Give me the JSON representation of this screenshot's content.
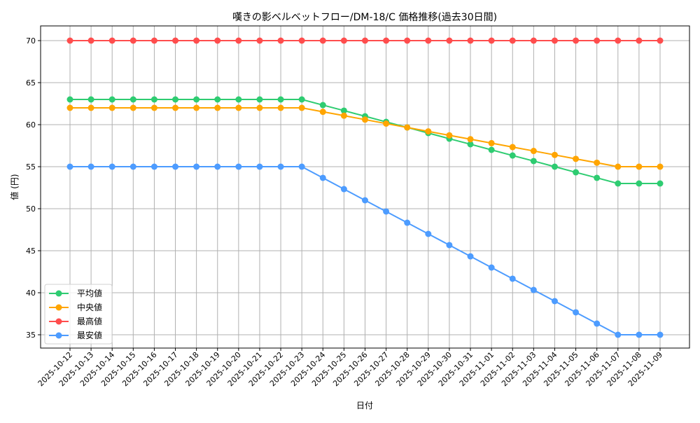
{
  "chart_data": {
    "type": "line",
    "title": "嘆きの影ベルベットフロー/DM-18/C 価格推移(過去30日間)",
    "xlabel": "日付",
    "ylabel": "値 (円)",
    "ylim": [
      33.3,
      71.7
    ],
    "yticks": [
      35,
      40,
      45,
      50,
      55,
      60,
      65,
      70
    ],
    "grid": true,
    "legend_position": "lower left",
    "x": [
      "2025-10-12",
      "2025-10-13",
      "2025-10-14",
      "2025-10-15",
      "2025-10-16",
      "2025-10-17",
      "2025-10-18",
      "2025-10-19",
      "2025-10-20",
      "2025-10-21",
      "2025-10-22",
      "2025-10-23",
      "2025-10-24",
      "2025-10-25",
      "2025-10-26",
      "2025-10-27",
      "2025-10-28",
      "2025-10-29",
      "2025-10-30",
      "2025-10-31",
      "2025-11-01",
      "2025-11-02",
      "2025-11-03",
      "2025-11-04",
      "2025-11-05",
      "2025-11-06",
      "2025-11-07",
      "2025-11-08",
      "2025-11-09"
    ],
    "series": [
      {
        "name": "平均値",
        "color": "#2ecc71",
        "values": [
          63,
          63,
          63,
          63,
          63,
          63,
          63,
          63,
          63,
          63,
          63,
          63,
          62.33,
          61.67,
          61.0,
          60.33,
          59.67,
          59.0,
          58.33,
          57.67,
          57.0,
          56.33,
          55.67,
          55.0,
          54.33,
          53.67,
          53,
          53,
          53
        ]
      },
      {
        "name": "中央値",
        "color": "#ffa500",
        "values": [
          62,
          62,
          62,
          62,
          62,
          62,
          62,
          62,
          62,
          62,
          62,
          62,
          61.53,
          61.07,
          60.6,
          60.13,
          59.67,
          59.2,
          58.73,
          58.27,
          57.8,
          57.33,
          56.87,
          56.4,
          55.93,
          55.47,
          55,
          55,
          55
        ]
      },
      {
        "name": "最高値",
        "color": "#ff4d4d",
        "values": [
          70,
          70,
          70,
          70,
          70,
          70,
          70,
          70,
          70,
          70,
          70,
          70,
          70,
          70,
          70,
          70,
          70,
          70,
          70,
          70,
          70,
          70,
          70,
          70,
          70,
          70,
          70,
          70,
          70
        ]
      },
      {
        "name": "最安値",
        "color": "#4d9cff",
        "values": [
          55,
          55,
          55,
          55,
          55,
          55,
          55,
          55,
          55,
          55,
          55,
          55,
          53.67,
          52.33,
          51.0,
          49.67,
          48.33,
          47.0,
          45.67,
          44.33,
          43.0,
          41.67,
          40.33,
          39.0,
          37.67,
          36.33,
          35,
          35,
          35
        ]
      }
    ]
  }
}
